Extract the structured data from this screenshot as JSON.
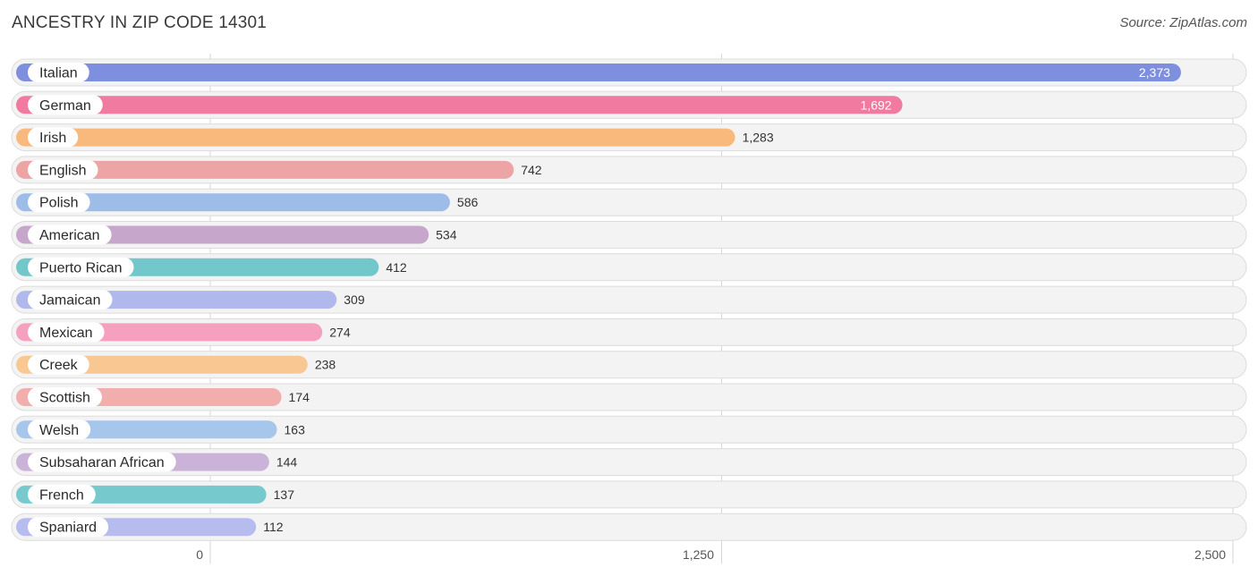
{
  "title": "ANCESTRY IN ZIP CODE 14301",
  "source": "Source: ZipAtlas.com",
  "chart_data": {
    "type": "bar",
    "orientation": "horizontal",
    "title": "ANCESTRY IN ZIP CODE 14301",
    "xlim": [
      0,
      2500
    ],
    "x_ticks": [
      0,
      1250,
      2500
    ],
    "x_tick_labels": [
      "0",
      "1,250",
      "2,500"
    ],
    "grid": true,
    "categories": [
      "Italian",
      "German",
      "Irish",
      "English",
      "Polish",
      "American",
      "Puerto Rican",
      "Jamaican",
      "Mexican",
      "Creek",
      "Scottish",
      "Welsh",
      "Subsaharan African",
      "French",
      "Spaniard"
    ],
    "values": [
      2373,
      1692,
      1283,
      742,
      586,
      534,
      412,
      309,
      274,
      238,
      174,
      163,
      144,
      137,
      112
    ],
    "value_labels": [
      "2,373",
      "1,692",
      "1,283",
      "742",
      "586",
      "534",
      "412",
      "309",
      "274",
      "238",
      "174",
      "163",
      "144",
      "137",
      "112"
    ],
    "colors": [
      "#7f8fe0",
      "#f07aa0",
      "#f9b97c",
      "#eca4a4",
      "#9dbde8",
      "#c7a6cc",
      "#72c7cb",
      "#b1b8ec",
      "#f6a0bf",
      "#f9c792",
      "#f2adad",
      "#a6c6ec",
      "#cbb2d8",
      "#76cacd",
      "#b6bdee"
    ]
  }
}
